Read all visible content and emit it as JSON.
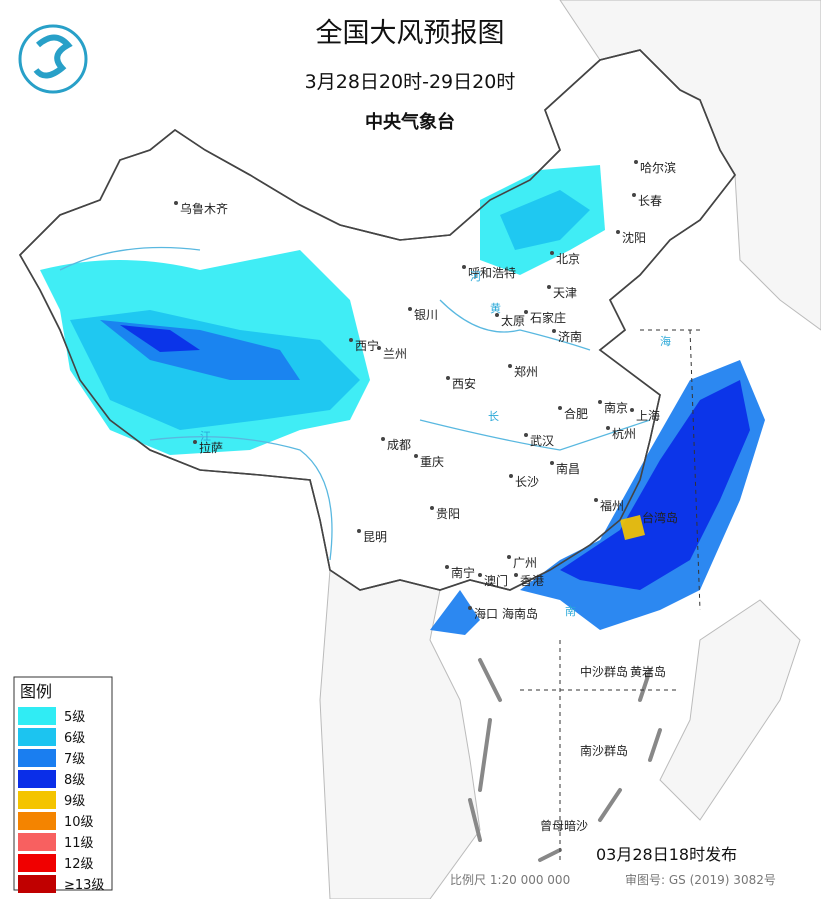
{
  "header": {
    "title": "全国大风预报图",
    "period": "3月28日20时-29日20时",
    "issuer": "中央气象台"
  },
  "cities": [
    "乌鲁木齐",
    "哈尔滨",
    "长春",
    "沈阳",
    "北京",
    "天津",
    "呼和浩特",
    "银川",
    "太原",
    "石家庄",
    "济南",
    "西宁",
    "兰州",
    "西安",
    "郑州",
    "合肥",
    "南京",
    "上海",
    "杭州",
    "武汉",
    "成都",
    "拉萨",
    "重庆",
    "南昌",
    "长沙",
    "福州",
    "贵阳",
    "昆明",
    "南宁",
    "广州",
    "澳门",
    "香港",
    "海口",
    "台湾岛",
    "海南岛",
    "中沙群岛",
    "黄岩岛",
    "南沙群岛",
    "曾母暗沙"
  ],
  "water_labels": [
    "黄",
    "河",
    "长",
    "江",
    "海",
    "南"
  ],
  "legend": {
    "title": "图例",
    "items": [
      {
        "label": "5级",
        "color": "#30ecf4"
      },
      {
        "label": "6级",
        "color": "#1cc4f0"
      },
      {
        "label": "7级",
        "color": "#1a7ef0"
      },
      {
        "label": "8级",
        "color": "#0a2ee8"
      },
      {
        "label": "9级",
        "color": "#f4c400"
      },
      {
        "label": "10级",
        "color": "#f48400"
      },
      {
        "label": "11级",
        "color": "#f86060"
      },
      {
        "label": "12级",
        "color": "#f00000"
      },
      {
        "label": "≥13级",
        "color": "#c00000"
      }
    ]
  },
  "footer": {
    "issued": "03月28日18时发布",
    "scale": "比例尺 1:20 000 000",
    "review": "审图号: GS (2019) 3082号"
  }
}
